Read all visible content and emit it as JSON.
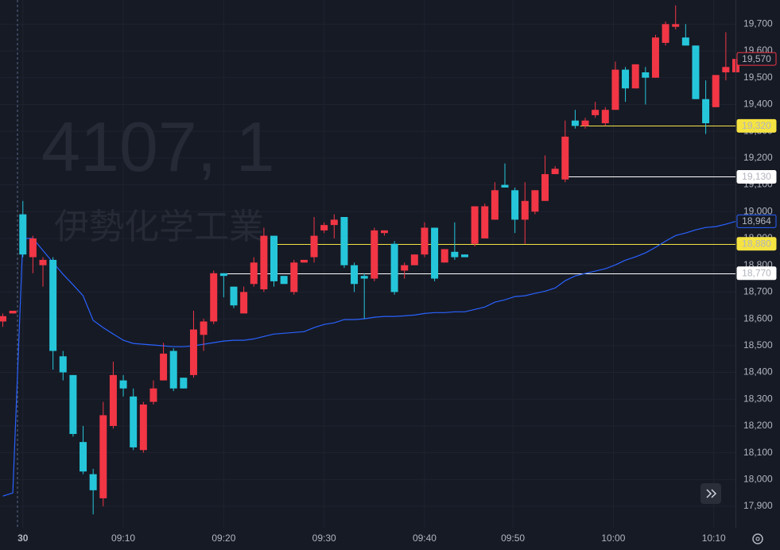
{
  "chart_data": {
    "type": "candlestick",
    "watermark_symbol": "4107, 1",
    "watermark_name": "伊勢化学工業",
    "up_color": "#f23645",
    "down_color": "#26c6da",
    "open": [
      18590,
      18620,
      18990,
      18830,
      18800,
      18820,
      18460,
      18390,
      18140,
      18020,
      17930,
      18200,
      18370,
      18310,
      18110,
      18290,
      18370,
      18480,
      18380,
      18390,
      18540,
      18590,
      18770,
      18720,
      18620,
      18730,
      18710,
      18910,
      18760,
      18700,
      18810,
      18830,
      18930,
      18950,
      18980,
      18800,
      18760,
      18750,
      18920,
      18880,
      18780,
      18800,
      18840,
      18940,
      18810,
      18850,
      18840,
      18880,
      18900,
      18970,
      19100,
      19080,
      18970,
      19000,
      19040,
      19140,
      19120,
      19340,
      19320,
      19360,
      19330,
      19380,
      19530,
      19460,
      19520,
      19500,
      19630,
      19690,
      19650,
      19620,
      19420,
      19390,
      19520,
      19520
    ],
    "high": [
      18620,
      18630,
      19040,
      18910,
      18830,
      18830,
      18480,
      18390,
      18200,
      18040,
      18290,
      18440,
      18390,
      18340,
      18290,
      18370,
      18510,
      18490,
      18380,
      18630,
      18600,
      18780,
      18770,
      18720,
      18720,
      18830,
      18940,
      18910,
      18760,
      18820,
      18820,
      18980,
      18960,
      18990,
      18980,
      18810,
      18770,
      18940,
      18930,
      18890,
      18810,
      18840,
      18960,
      18940,
      18860,
      18960,
      18840,
      19020,
      19030,
      19110,
      19180,
      19090,
      19110,
      19080,
      19210,
      19170,
      19340,
      19380,
      19350,
      19410,
      19390,
      19560,
      19540,
      19550,
      19540,
      19660,
      19710,
      19770,
      19700,
      19620,
      19490,
      19510,
      19670,
      19600
    ],
    "low": [
      18570,
      18620,
      18830,
      18770,
      18720,
      18410,
      18370,
      18160,
      18020,
      17870,
      17900,
      18190,
      18310,
      18110,
      18100,
      18280,
      18370,
      18330,
      18340,
      18380,
      18480,
      18580,
      18680,
      18640,
      18620,
      18720,
      18700,
      18720,
      18730,
      18690,
      18810,
      18810,
      18920,
      18900,
      18790,
      18700,
      18600,
      18740,
      18910,
      18690,
      18750,
      18800,
      18830,
      18740,
      18810,
      18820,
      18830,
      18870,
      18900,
      18970,
      19090,
      18920,
      18880,
      18990,
      19040,
      19140,
      19110,
      19310,
      19310,
      19350,
      19320,
      19380,
      19410,
      19460,
      19400,
      19500,
      19620,
      19680,
      19620,
      19420,
      19290,
      19390,
      19490,
      19480
    ],
    "close": [
      18610,
      18630,
      18840,
      18900,
      18820,
      18480,
      18400,
      18170,
      18030,
      17960,
      18240,
      18390,
      18340,
      18120,
      18280,
      18340,
      18470,
      18340,
      18340,
      18560,
      18590,
      18770,
      18760,
      18650,
      18700,
      18810,
      18910,
      18740,
      18730,
      18810,
      18820,
      18910,
      18950,
      18970,
      18800,
      18730,
      18750,
      18930,
      18930,
      18700,
      18800,
      18840,
      18940,
      18750,
      18860,
      18830,
      18830,
      19020,
      19020,
      19080,
      19090,
      18970,
      19040,
      19080,
      19140,
      19160,
      19280,
      19320,
      19340,
      19380,
      19380,
      19530,
      19460,
      19550,
      19500,
      19650,
      19700,
      19700,
      19620,
      19420,
      19330,
      19510,
      19540,
      19570
    ],
    "ma": {
      "color": "#2962ff",
      "values": [
        17938,
        17950,
        18900,
        18900,
        18855,
        18810,
        18766,
        18727,
        18686,
        18594,
        18567,
        18543,
        18520,
        18508,
        18505,
        18502,
        18499,
        18496,
        18496,
        18499,
        18505,
        18511,
        18517,
        18520,
        18520,
        18525,
        18534,
        18543,
        18546,
        18549,
        18552,
        18567,
        18579,
        18585,
        18597,
        18597,
        18600,
        18606,
        18609,
        18609,
        18611,
        18614,
        18620,
        18623,
        18623,
        18626,
        18626,
        18635,
        18644,
        18662,
        18671,
        18683,
        18686,
        18695,
        18703,
        18715,
        18742,
        18760,
        18769,
        18778,
        18787,
        18801,
        18819,
        18831,
        18846,
        18867,
        18890,
        18911,
        18920,
        18932,
        18941,
        18944,
        18953,
        18964
      ],
      "tag": {
        "value": 18964,
        "label": "18,964"
      }
    },
    "last_price": {
      "value": 19570,
      "label": "19,570",
      "color": "#f23645"
    },
    "price_lines": [
      {
        "value": 19320,
        "label": "19,320",
        "color": "#f5e342"
      },
      {
        "value": 19130,
        "label": "19,130",
        "color": "#ffffff"
      },
      {
        "value": 18880,
        "label": "18,880",
        "color": "#f5e342"
      },
      {
        "value": 18770,
        "label": "18,770",
        "color": "#ffffff"
      }
    ],
    "x_labels": [
      "30",
      "09:10",
      "09:20",
      "09:30",
      "09:40",
      "09:50",
      "10:00",
      "10:10"
    ],
    "ylim": [
      17820,
      19790
    ],
    "yticks": [
      {
        "value": 19700,
        "label": "19,700"
      },
      {
        "value": 19600,
        "label": "19,600"
      },
      {
        "value": 19500,
        "label": "19,500"
      },
      {
        "value": 19400,
        "label": "19,400"
      },
      {
        "value": 19300,
        "label": "19,300"
      },
      {
        "value": 19200,
        "label": "19,200"
      },
      {
        "value": 19100,
        "label": "19,100"
      },
      {
        "value": 19000,
        "label": "19,000"
      },
      {
        "value": 18900,
        "label": "18,900"
      },
      {
        "value": 18800,
        "label": "18,800"
      },
      {
        "value": 18700,
        "label": "18,700"
      },
      {
        "value": 18600,
        "label": "18,600"
      },
      {
        "value": 18500,
        "label": "18,500"
      },
      {
        "value": 18400,
        "label": "18,400"
      },
      {
        "value": 18300,
        "label": "18,300"
      },
      {
        "value": 18200,
        "label": "18,200"
      },
      {
        "value": 18100,
        "label": "18,100"
      },
      {
        "value": 18000,
        "label": "18,000"
      },
      {
        "value": 17900,
        "label": "17,900"
      }
    ],
    "grid": true
  }
}
